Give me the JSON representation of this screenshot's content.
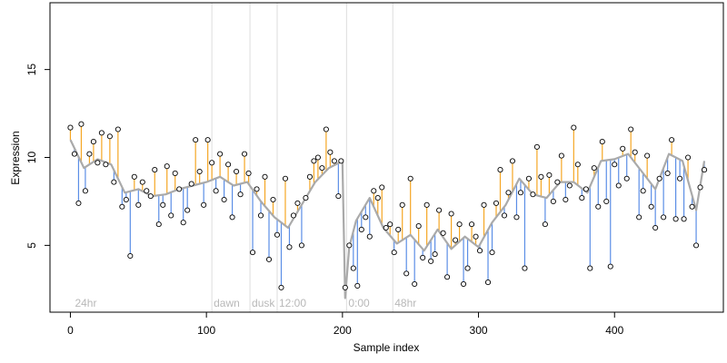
{
  "chart_data": {
    "type": "line",
    "title": "",
    "xlabel": "Sample index",
    "ylabel": "Expression",
    "xlim": [
      -15,
      480
    ],
    "ylim": [
      1.2,
      18.8
    ],
    "x_ticks": [
      0,
      100,
      200,
      300,
      400
    ],
    "y_ticks": [
      5,
      10,
      15
    ],
    "grid": false,
    "legend": "none",
    "colors": {
      "fitted_line": "#aaaaaa",
      "residual_positive": "#f5a623",
      "residual_negative": "#5b8ee6",
      "points_stroke": "#000000",
      "boundary_lines": "#dddddd",
      "annotation_text": "#b8b8b8"
    },
    "boundaries": [
      {
        "x": 104,
        "label": "dawn"
      },
      {
        "x": 132,
        "label": "dusk"
      },
      {
        "x": 152,
        "label": "12:00"
      },
      {
        "x": 203,
        "label": "0:00"
      },
      {
        "x": 237,
        "label": "48hr"
      }
    ],
    "corner_label": {
      "x": 2,
      "label": "24hr"
    },
    "series": [
      {
        "kind": "fitted",
        "x": [
          0,
          10,
          20,
          30,
          40,
          50,
          60,
          70,
          80,
          90,
          100,
          110,
          120,
          130,
          140,
          150,
          160,
          170,
          180,
          190,
          200,
          202,
          205,
          210,
          220,
          230,
          240,
          250,
          260,
          270,
          280,
          290,
          300,
          310,
          320,
          330,
          340,
          350,
          360,
          370,
          380,
          390,
          400,
          410,
          420,
          430,
          440,
          450,
          460,
          466
        ],
        "y": [
          11.0,
          9.4,
          9.9,
          9.6,
          8.0,
          8.2,
          7.8,
          7.9,
          8.2,
          8.4,
          8.6,
          8.9,
          8.4,
          8.6,
          7.5,
          6.6,
          6.0,
          7.3,
          8.6,
          9.4,
          9.8,
          2.0,
          4.9,
          6.4,
          7.7,
          6.0,
          5.1,
          5.6,
          4.7,
          5.9,
          4.8,
          5.5,
          4.9,
          6.3,
          7.3,
          8.8,
          7.9,
          7.7,
          8.6,
          8.6,
          8.0,
          9.8,
          9.9,
          10.2,
          9.2,
          8.2,
          10.2,
          9.8,
          7.0,
          9.8
        ]
      },
      {
        "kind": "observed",
        "points": [
          {
            "x": 0,
            "y": 11.7
          },
          {
            "x": 3,
            "y": 10.2
          },
          {
            "x": 6,
            "y": 7.4
          },
          {
            "x": 8,
            "y": 11.9
          },
          {
            "x": 11,
            "y": 8.1
          },
          {
            "x": 14,
            "y": 10.2
          },
          {
            "x": 17,
            "y": 10.9
          },
          {
            "x": 20,
            "y": 9.7
          },
          {
            "x": 23,
            "y": 11.4
          },
          {
            "x": 26,
            "y": 9.6
          },
          {
            "x": 29,
            "y": 11.2
          },
          {
            "x": 32,
            "y": 8.6
          },
          {
            "x": 35,
            "y": 11.6
          },
          {
            "x": 38,
            "y": 7.2
          },
          {
            "x": 41,
            "y": 7.6
          },
          {
            "x": 44,
            "y": 4.4
          },
          {
            "x": 47,
            "y": 8.9
          },
          {
            "x": 50,
            "y": 7.3
          },
          {
            "x": 53,
            "y": 8.6
          },
          {
            "x": 56,
            "y": 8.1
          },
          {
            "x": 59,
            "y": 7.8
          },
          {
            "x": 62,
            "y": 9.3
          },
          {
            "x": 65,
            "y": 6.2
          },
          {
            "x": 68,
            "y": 7.3
          },
          {
            "x": 71,
            "y": 9.5
          },
          {
            "x": 74,
            "y": 6.7
          },
          {
            "x": 77,
            "y": 9.1
          },
          {
            "x": 80,
            "y": 8.2
          },
          {
            "x": 83,
            "y": 6.3
          },
          {
            "x": 86,
            "y": 7.0
          },
          {
            "x": 89,
            "y": 8.5
          },
          {
            "x": 92,
            "y": 11.0
          },
          {
            "x": 95,
            "y": 9.2
          },
          {
            "x": 98,
            "y": 7.3
          },
          {
            "x": 101,
            "y": 11.0
          },
          {
            "x": 104,
            "y": 9.7
          },
          {
            "x": 107,
            "y": 8.1
          },
          {
            "x": 110,
            "y": 10.2
          },
          {
            "x": 113,
            "y": 7.6
          },
          {
            "x": 116,
            "y": 9.6
          },
          {
            "x": 119,
            "y": 6.6
          },
          {
            "x": 122,
            "y": 9.2
          },
          {
            "x": 125,
            "y": 7.9
          },
          {
            "x": 128,
            "y": 10.2
          },
          {
            "x": 131,
            "y": 9.1
          },
          {
            "x": 134,
            "y": 4.6
          },
          {
            "x": 137,
            "y": 8.2
          },
          {
            "x": 140,
            "y": 6.7
          },
          {
            "x": 143,
            "y": 8.9
          },
          {
            "x": 146,
            "y": 4.2
          },
          {
            "x": 149,
            "y": 7.6
          },
          {
            "x": 152,
            "y": 5.6
          },
          {
            "x": 155,
            "y": 2.6
          },
          {
            "x": 158,
            "y": 8.8
          },
          {
            "x": 161,
            "y": 4.9
          },
          {
            "x": 164,
            "y": 6.7
          },
          {
            "x": 167,
            "y": 7.4
          },
          {
            "x": 170,
            "y": 5.0
          },
          {
            "x": 173,
            "y": 7.7
          },
          {
            "x": 176,
            "y": 8.9
          },
          {
            "x": 179,
            "y": 9.8
          },
          {
            "x": 182,
            "y": 10.0
          },
          {
            "x": 185,
            "y": 9.4
          },
          {
            "x": 188,
            "y": 11.6
          },
          {
            "x": 191,
            "y": 10.3
          },
          {
            "x": 194,
            "y": 9.8
          },
          {
            "x": 197,
            "y": 7.8
          },
          {
            "x": 199,
            "y": 9.8
          },
          {
            "x": 202,
            "y": 2.6
          },
          {
            "x": 205,
            "y": 5.0
          },
          {
            "x": 208,
            "y": 3.7
          },
          {
            "x": 211,
            "y": 2.7
          },
          {
            "x": 214,
            "y": 5.9
          },
          {
            "x": 217,
            "y": 6.6
          },
          {
            "x": 220,
            "y": 5.5
          },
          {
            "x": 223,
            "y": 8.1
          },
          {
            "x": 226,
            "y": 7.7
          },
          {
            "x": 229,
            "y": 8.3
          },
          {
            "x": 232,
            "y": 6.0
          },
          {
            "x": 235,
            "y": 6.2
          },
          {
            "x": 238,
            "y": 4.6
          },
          {
            "x": 241,
            "y": 5.9
          },
          {
            "x": 244,
            "y": 7.3
          },
          {
            "x": 247,
            "y": 3.4
          },
          {
            "x": 250,
            "y": 8.8
          },
          {
            "x": 253,
            "y": 2.8
          },
          {
            "x": 256,
            "y": 6.1
          },
          {
            "x": 259,
            "y": 4.3
          },
          {
            "x": 262,
            "y": 7.3
          },
          {
            "x": 265,
            "y": 4.1
          },
          {
            "x": 268,
            "y": 4.5
          },
          {
            "x": 271,
            "y": 7.0
          },
          {
            "x": 274,
            "y": 5.7
          },
          {
            "x": 277,
            "y": 3.2
          },
          {
            "x": 280,
            "y": 6.8
          },
          {
            "x": 283,
            "y": 5.3
          },
          {
            "x": 286,
            "y": 6.2
          },
          {
            "x": 289,
            "y": 2.8
          },
          {
            "x": 292,
            "y": 3.7
          },
          {
            "x": 295,
            "y": 6.2
          },
          {
            "x": 298,
            "y": 5.5
          },
          {
            "x": 301,
            "y": 4.7
          },
          {
            "x": 304,
            "y": 7.3
          },
          {
            "x": 307,
            "y": 2.9
          },
          {
            "x": 310,
            "y": 4.6
          },
          {
            "x": 313,
            "y": 7.4
          },
          {
            "x": 316,
            "y": 9.3
          },
          {
            "x": 319,
            "y": 6.7
          },
          {
            "x": 322,
            "y": 8.0
          },
          {
            "x": 325,
            "y": 9.8
          },
          {
            "x": 328,
            "y": 6.6
          },
          {
            "x": 331,
            "y": 8.0
          },
          {
            "x": 334,
            "y": 3.7
          },
          {
            "x": 337,
            "y": 8.8
          },
          {
            "x": 340,
            "y": 7.9
          },
          {
            "x": 343,
            "y": 10.6
          },
          {
            "x": 346,
            "y": 8.9
          },
          {
            "x": 349,
            "y": 6.2
          },
          {
            "x": 352,
            "y": 9.0
          },
          {
            "x": 355,
            "y": 7.5
          },
          {
            "x": 358,
            "y": 8.6
          },
          {
            "x": 361,
            "y": 10.1
          },
          {
            "x": 364,
            "y": 7.6
          },
          {
            "x": 367,
            "y": 8.4
          },
          {
            "x": 370,
            "y": 11.7
          },
          {
            "x": 373,
            "y": 9.6
          },
          {
            "x": 376,
            "y": 7.7
          },
          {
            "x": 379,
            "y": 8.2
          },
          {
            "x": 382,
            "y": 3.7
          },
          {
            "x": 385,
            "y": 9.4
          },
          {
            "x": 388,
            "y": 7.2
          },
          {
            "x": 391,
            "y": 10.9
          },
          {
            "x": 394,
            "y": 7.5
          },
          {
            "x": 397,
            "y": 3.8
          },
          {
            "x": 400,
            "y": 9.6
          },
          {
            "x": 403,
            "y": 8.4
          },
          {
            "x": 406,
            "y": 10.5
          },
          {
            "x": 409,
            "y": 8.8
          },
          {
            "x": 412,
            "y": 11.6
          },
          {
            "x": 415,
            "y": 10.3
          },
          {
            "x": 418,
            "y": 6.6
          },
          {
            "x": 421,
            "y": 8.1
          },
          {
            "x": 424,
            "y": 10.1
          },
          {
            "x": 427,
            "y": 7.2
          },
          {
            "x": 430,
            "y": 6.0
          },
          {
            "x": 433,
            "y": 8.8
          },
          {
            "x": 436,
            "y": 6.6
          },
          {
            "x": 439,
            "y": 9.1
          },
          {
            "x": 442,
            "y": 11.0
          },
          {
            "x": 445,
            "y": 6.5
          },
          {
            "x": 448,
            "y": 8.8
          },
          {
            "x": 451,
            "y": 6.5
          },
          {
            "x": 454,
            "y": 10.0
          },
          {
            "x": 457,
            "y": 7.2
          },
          {
            "x": 460,
            "y": 5.0
          },
          {
            "x": 463,
            "y": 8.3
          },
          {
            "x": 466,
            "y": 9.3
          }
        ]
      }
    ]
  }
}
